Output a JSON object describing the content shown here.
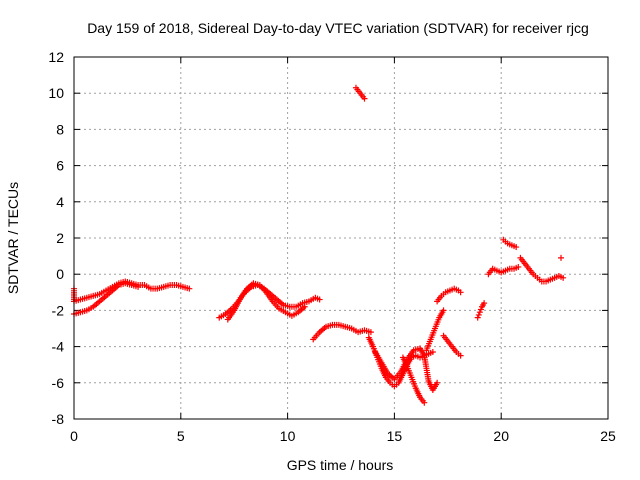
{
  "chart_data": {
    "type": "scatter",
    "title": "Day 159 of 2018, Sidereal Day-to-day VTEC variation (SDTVAR) for receiver rjcg",
    "xlabel": "GPS time / hours",
    "ylabel": "SDTVAR / TECUs",
    "xlim": [
      0,
      25
    ],
    "ylim": [
      -8,
      12
    ],
    "xticks": [
      0,
      5,
      10,
      15,
      20,
      25
    ],
    "yticks": [
      -8,
      -6,
      -4,
      -2,
      0,
      2,
      4,
      6,
      8,
      10,
      12
    ],
    "grid": true,
    "marker": "+",
    "color": "#ff0000",
    "segments": [
      [
        [
          0.0,
          -0.8
        ],
        [
          0.0,
          -1.5
        ],
        [
          0.3,
          -1.4
        ],
        [
          0.6,
          -1.3
        ],
        [
          0.9,
          -1.2
        ],
        [
          1.2,
          -1.1
        ],
        [
          1.5,
          -0.9
        ],
        [
          1.8,
          -0.7
        ],
        [
          2.1,
          -0.5
        ],
        [
          2.4,
          -0.4
        ],
        [
          2.7,
          -0.5
        ],
        [
          3.0,
          -0.6
        ],
        [
          3.3,
          -0.6
        ],
        [
          3.6,
          -0.8
        ],
        [
          3.9,
          -0.8
        ],
        [
          4.2,
          -0.7
        ],
        [
          4.5,
          -0.6
        ],
        [
          4.8,
          -0.6
        ],
        [
          5.1,
          -0.7
        ],
        [
          5.4,
          -0.8
        ]
      ],
      [
        [
          0.0,
          -2.2
        ],
        [
          0.3,
          -2.1
        ],
        [
          0.6,
          -2.0
        ],
        [
          0.9,
          -1.8
        ],
        [
          1.2,
          -1.5
        ],
        [
          1.5,
          -1.2
        ],
        [
          1.8,
          -0.9
        ],
        [
          2.1,
          -0.6
        ],
        [
          2.4,
          -0.5
        ],
        [
          2.7,
          -0.6
        ],
        [
          3.0,
          -0.7
        ]
      ],
      [
        [
          6.8,
          -2.4
        ],
        [
          7.1,
          -2.2
        ],
        [
          7.4,
          -1.9
        ],
        [
          7.7,
          -1.5
        ],
        [
          8.0,
          -1.0
        ],
        [
          8.3,
          -0.7
        ],
        [
          8.6,
          -0.6
        ],
        [
          8.9,
          -0.8
        ],
        [
          9.2,
          -1.1
        ],
        [
          9.5,
          -1.4
        ],
        [
          9.8,
          -1.7
        ],
        [
          10.1,
          -1.8
        ],
        [
          10.4,
          -1.8
        ],
        [
          10.7,
          -1.6
        ],
        [
          11.0,
          -1.5
        ],
        [
          11.3,
          -1.3
        ],
        [
          11.5,
          -1.4
        ]
      ],
      [
        [
          7.2,
          -2.5
        ],
        [
          7.5,
          -2.0
        ],
        [
          7.8,
          -1.3
        ],
        [
          8.1,
          -0.8
        ],
        [
          8.4,
          -0.5
        ],
        [
          8.7,
          -0.6
        ],
        [
          9.0,
          -1.0
        ],
        [
          9.3,
          -1.5
        ],
        [
          9.6,
          -1.9
        ],
        [
          9.9,
          -2.1
        ],
        [
          10.2,
          -2.3
        ],
        [
          10.5,
          -2.1
        ],
        [
          10.8,
          -1.8
        ]
      ],
      [
        [
          11.2,
          -3.6
        ],
        [
          11.5,
          -3.2
        ],
        [
          11.8,
          -2.9
        ],
        [
          12.1,
          -2.8
        ],
        [
          12.4,
          -2.8
        ],
        [
          12.7,
          -2.9
        ],
        [
          13.0,
          -3.0
        ],
        [
          13.3,
          -3.2
        ],
        [
          13.6,
          -3.1
        ],
        [
          13.9,
          -3.2
        ]
      ],
      [
        [
          13.2,
          10.3
        ],
        [
          13.4,
          10.0
        ],
        [
          13.6,
          9.7
        ]
      ],
      [
        [
          13.8,
          -3.5
        ],
        [
          14.0,
          -4.0
        ],
        [
          14.2,
          -4.6
        ],
        [
          14.4,
          -5.2
        ],
        [
          14.6,
          -5.7
        ],
        [
          14.8,
          -6.0
        ],
        [
          15.0,
          -6.2
        ],
        [
          15.2,
          -6.0
        ],
        [
          15.4,
          -5.5
        ],
        [
          15.6,
          -5.0
        ],
        [
          15.8,
          -4.6
        ],
        [
          16.0,
          -4.5
        ],
        [
          16.2,
          -4.6
        ],
        [
          16.4,
          -4.5
        ],
        [
          16.6,
          -4.4
        ],
        [
          16.8,
          -4.3
        ]
      ],
      [
        [
          14.1,
          -4.3
        ],
        [
          14.4,
          -4.9
        ],
        [
          14.7,
          -5.5
        ],
        [
          15.0,
          -5.8
        ],
        [
          15.3,
          -5.4
        ],
        [
          15.6,
          -4.7
        ],
        [
          15.9,
          -4.2
        ],
        [
          16.2,
          -4.1
        ],
        [
          16.4,
          -4.5
        ],
        [
          16.5,
          -5.2
        ],
        [
          16.6,
          -5.9
        ],
        [
          16.8,
          -6.4
        ],
        [
          17.0,
          -6.0
        ]
      ],
      [
        [
          15.4,
          -4.6
        ],
        [
          15.6,
          -5.1
        ],
        [
          15.8,
          -5.7
        ],
        [
          16.0,
          -6.3
        ],
        [
          16.2,
          -6.8
        ],
        [
          16.4,
          -7.1
        ]
      ],
      [
        [
          16.5,
          -4.2
        ],
        [
          16.7,
          -3.6
        ],
        [
          16.9,
          -3.0
        ],
        [
          17.1,
          -2.4
        ],
        [
          17.3,
          -2.0
        ]
      ],
      [
        [
          17.0,
          -1.5
        ],
        [
          17.2,
          -1.2
        ],
        [
          17.4,
          -1.0
        ],
        [
          17.6,
          -0.9
        ],
        [
          17.8,
          -0.8
        ],
        [
          18.0,
          -0.9
        ],
        [
          18.1,
          -1.0
        ]
      ],
      [
        [
          17.3,
          -3.4
        ],
        [
          17.5,
          -3.7
        ],
        [
          17.7,
          -4.0
        ],
        [
          17.9,
          -4.3
        ],
        [
          18.1,
          -4.5
        ]
      ],
      [
        [
          18.9,
          -2.4
        ],
        [
          19.0,
          -2.1
        ],
        [
          19.1,
          -1.8
        ],
        [
          19.2,
          -1.6
        ]
      ],
      [
        [
          19.4,
          0.0
        ],
        [
          19.6,
          0.3
        ],
        [
          19.8,
          0.2
        ],
        [
          20.0,
          0.1
        ],
        [
          20.2,
          0.2
        ],
        [
          20.4,
          0.3
        ],
        [
          20.6,
          0.3
        ],
        [
          20.8,
          0.4
        ]
      ],
      [
        [
          20.1,
          1.9
        ],
        [
          20.3,
          1.7
        ],
        [
          20.5,
          1.6
        ],
        [
          20.7,
          1.5
        ]
      ],
      [
        [
          20.9,
          0.9
        ],
        [
          21.1,
          0.6
        ],
        [
          21.3,
          0.3
        ],
        [
          21.5,
          0.0
        ],
        [
          21.7,
          -0.2
        ],
        [
          21.9,
          -0.4
        ],
        [
          22.1,
          -0.4
        ],
        [
          22.3,
          -0.3
        ],
        [
          22.5,
          -0.2
        ],
        [
          22.7,
          -0.1
        ],
        [
          22.9,
          -0.2
        ]
      ],
      [
        [
          22.8,
          0.9
        ]
      ]
    ]
  }
}
